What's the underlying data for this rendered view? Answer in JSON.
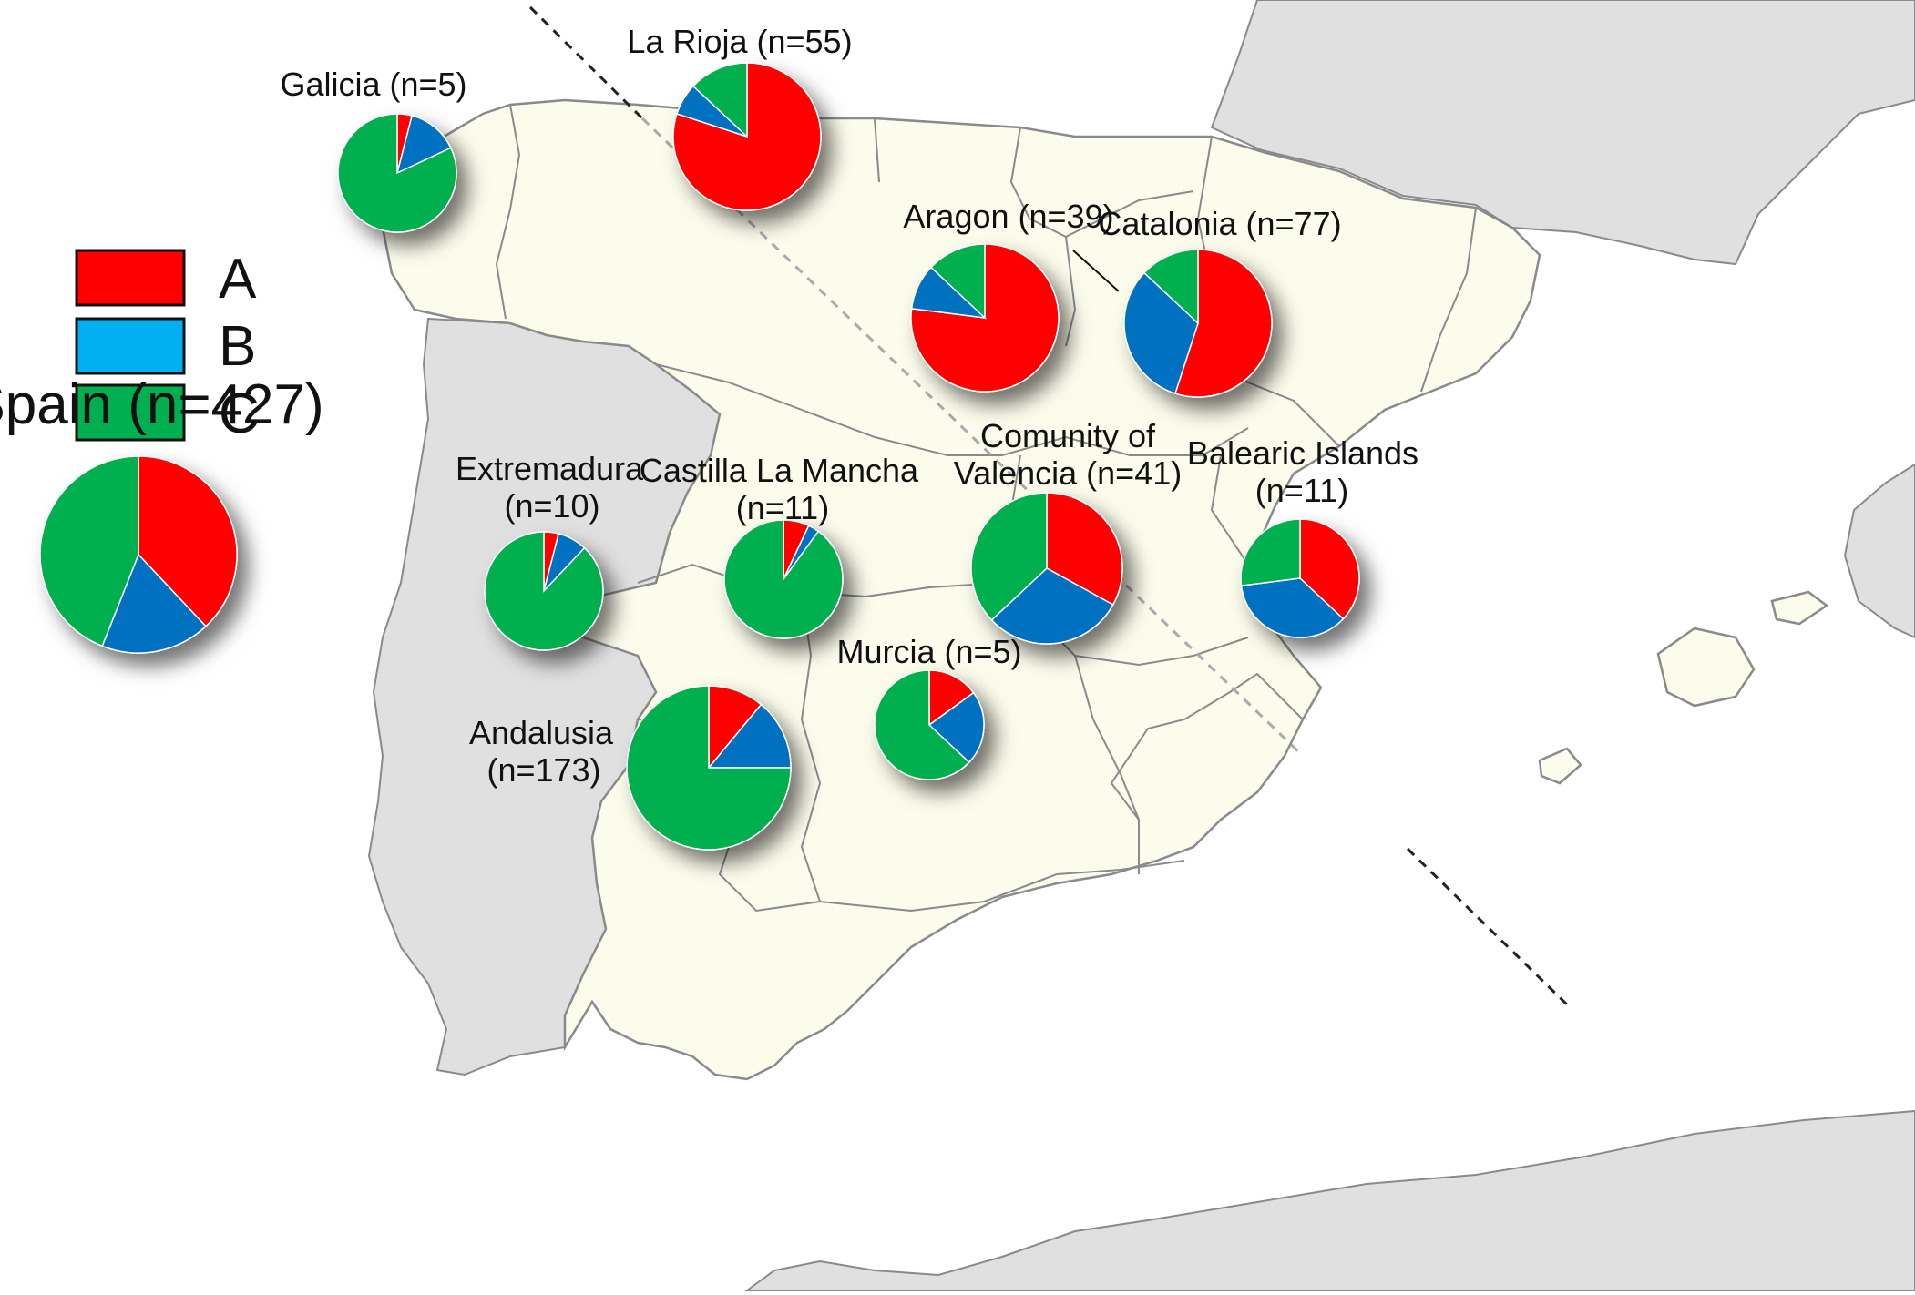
{
  "legend": {
    "items": [
      {
        "label": "A",
        "color": "#ff0000"
      },
      {
        "label": "B",
        "color": "#00b0f0"
      },
      {
        "label": "C",
        "color": "#00b050"
      }
    ]
  },
  "slice_colors": {
    "A": "#ff0000",
    "B": "#0070c0",
    "C": "#00b050"
  },
  "map_colors": {
    "sea": "#ffffff",
    "spain": "#fcfcec",
    "neighbors": "#e0e0e0",
    "borders": "#8a8a8a"
  },
  "chart_data": {
    "type": "pie",
    "categories": [
      "A",
      "B",
      "C"
    ],
    "charts": [
      {
        "id": "spain",
        "label_lines": [
          "Spain (n=427)"
        ],
        "values": [
          38,
          18,
          44
        ]
      },
      {
        "id": "galicia",
        "label_lines": [
          "Galicia (n=5)"
        ],
        "values": [
          4,
          14,
          82
        ]
      },
      {
        "id": "la-rioja",
        "label_lines": [
          "La Rioja (n=55)"
        ],
        "values": [
          80,
          7,
          13
        ]
      },
      {
        "id": "aragon",
        "label_lines": [
          "Aragon (n=39)"
        ],
        "values": [
          77,
          10,
          13
        ]
      },
      {
        "id": "catalonia",
        "label_lines": [
          "Catalonia (n=77)"
        ],
        "values": [
          55,
          32,
          13
        ]
      },
      {
        "id": "extremadura",
        "label_lines": [
          "Extremadura",
          "(n=10)"
        ],
        "values": [
          4,
          8,
          88
        ]
      },
      {
        "id": "castilla-la-mancha",
        "label_lines": [
          "Castilla La Mancha",
          "(n=11)"
        ],
        "values": [
          7,
          3,
          90
        ]
      },
      {
        "id": "valencia",
        "label_lines": [
          "Comunity of",
          "Valencia (n=41)"
        ],
        "values": [
          33,
          30,
          37
        ]
      },
      {
        "id": "balearic-islands",
        "label_lines": [
          "Balearic Islands",
          "(n=11)"
        ],
        "values": [
          37,
          36,
          27
        ]
      },
      {
        "id": "murcia",
        "label_lines": [
          "Murcia (n=5)"
        ],
        "values": [
          15,
          22,
          63
        ]
      },
      {
        "id": "andalusia",
        "label_lines": [
          "Andalusia",
          "(n=173)"
        ],
        "values": [
          11,
          14,
          75
        ]
      }
    ]
  }
}
